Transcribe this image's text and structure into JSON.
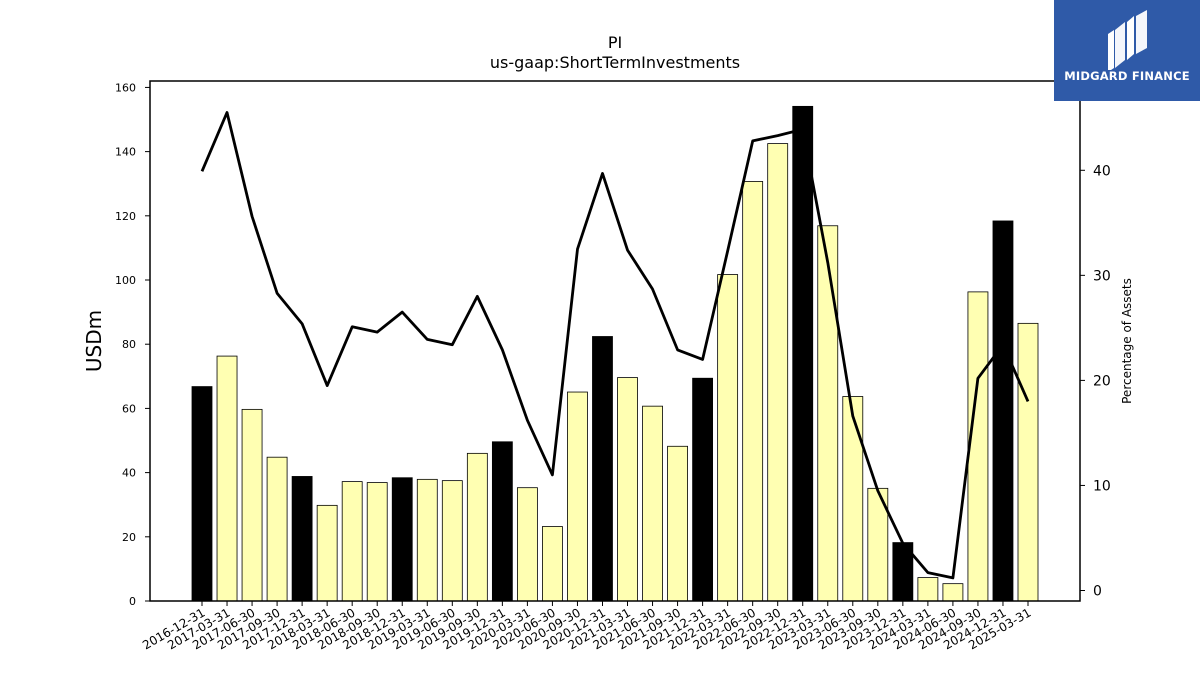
{
  "brand": {
    "name": "MIDGARD FINANCE",
    "colors": {
      "background": "#2f5aa8",
      "text": "#ffffff"
    },
    "icon": "midgard-m-logo-icon"
  },
  "chart_data": {
    "type": "bar",
    "title": "PI",
    "subtitle": "us-gaap:ShortTermInvestments",
    "ylabel": "USDm",
    "y2label": "Percentage of Assets",
    "ylim": [
      0,
      162
    ],
    "y2lim": [
      -1.0,
      48.5
    ],
    "yticks": [
      0,
      20,
      40,
      60,
      80,
      100,
      120,
      140,
      160
    ],
    "y2ticks": [
      0,
      10,
      20,
      30,
      40
    ],
    "grid": false,
    "colors": {
      "q4_bar": "#000000",
      "other_bar": "#ffffb2",
      "line": "#000000",
      "bar_edge": "#000000"
    },
    "categories": [
      "2016-12-31",
      "2017-03-31",
      "2017-06-30",
      "2017-09-30",
      "2017-12-31",
      "2018-03-31",
      "2018-06-30",
      "2018-09-30",
      "2018-12-31",
      "2019-03-31",
      "2019-06-30",
      "2019-09-30",
      "2019-12-31",
      "2020-03-31",
      "2020-06-30",
      "2020-09-30",
      "2020-12-31",
      "2021-03-31",
      "2021-06-30",
      "2021-09-30",
      "2021-12-31",
      "2022-03-31",
      "2022-06-30",
      "2022-09-30",
      "2022-12-31",
      "2023-03-31",
      "2023-06-30",
      "2023-09-30",
      "2023-12-31",
      "2024-03-31",
      "2024-06-30",
      "2024-09-30",
      "2024-12-31",
      "2025-03-31"
    ],
    "series": [
      {
        "kind": "bar",
        "axis": "left",
        "values": [
          66.8,
          76.3,
          59.7,
          44.8,
          38.8,
          29.8,
          37.2,
          36.9,
          38.4,
          37.9,
          37.5,
          46.0,
          49.6,
          35.3,
          23.2,
          65.1,
          82.4,
          69.6,
          60.7,
          48.2,
          69.4,
          101.7,
          130.7,
          142.5,
          154.1,
          116.9,
          63.7,
          35.1,
          18.2,
          7.3,
          5.4,
          96.3,
          118.4,
          86.5
        ]
      },
      {
        "kind": "line",
        "axis": "right",
        "values": [
          39.9,
          45.5,
          35.6,
          28.3,
          25.4,
          19.5,
          25.1,
          24.6,
          26.5,
          23.9,
          23.4,
          28.0,
          22.9,
          16.2,
          11.0,
          32.5,
          39.7,
          32.4,
          28.7,
          22.9,
          22.0,
          32.3,
          42.8,
          43.3,
          43.9,
          31.2,
          16.6,
          9.5,
          4.5,
          1.7,
          1.2,
          20.2,
          23.4,
          18.0
        ]
      }
    ]
  }
}
